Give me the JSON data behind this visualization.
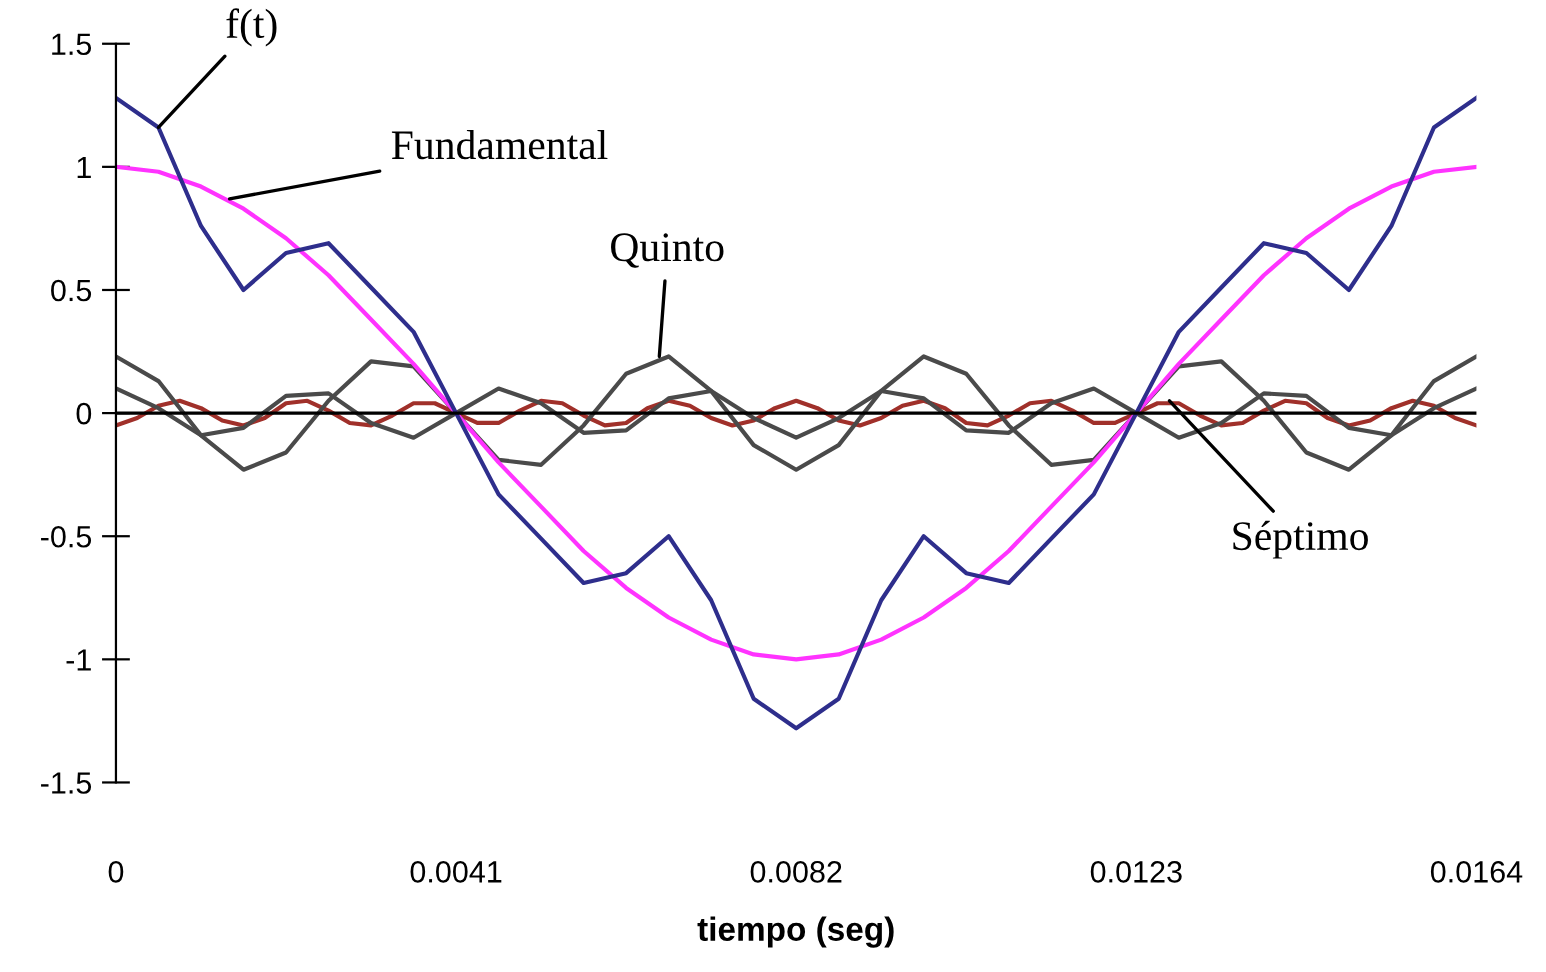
{
  "chart_data": {
    "type": "line",
    "xlabel": "tiempo (seg)",
    "x": [
      0,
      0.0005125,
      0.001025,
      0.0015375,
      0.00205,
      0.0025625,
      0.003075,
      0.0035875,
      0.0041,
      0.0046125,
      0.005125,
      0.0056375,
      0.00615,
      0.0066625,
      0.007175,
      0.0076875,
      0.0082,
      0.0087125,
      0.009225,
      0.0097375,
      0.01025,
      0.0107625,
      0.011275,
      0.0117875,
      0.0123,
      0.0128125,
      0.013325,
      0.0138375,
      0.01435,
      0.0148625,
      0.015375,
      0.0158875,
      0.0164
    ],
    "series": [
      {
        "color": "#a0302a",
        "x": [
          0,
          0.00025625,
          0.0005125,
          0.00076875,
          0.001025,
          0.00128125,
          0.0015375,
          0.00179375,
          0.00205,
          0.00230625,
          0.0025625,
          0.00281875,
          0.003075,
          0.00333125,
          0.0035875,
          0.00384375,
          0.0041,
          0.00435625,
          0.0046125,
          0.00486875,
          0.005125,
          0.00538125,
          0.0056375,
          0.00589375,
          0.00615,
          0.00640625,
          0.0066625,
          0.00691875,
          0.007175,
          0.00743125,
          0.0076875,
          0.00794375,
          0.0082,
          0.00845625,
          0.0087125,
          0.00896875,
          0.009225,
          0.00948125,
          0.0097375,
          0.00999375,
          0.01025,
          0.01050625,
          0.0107625,
          0.01101875,
          0.011275,
          0.01153125,
          0.0117875,
          0.01204375,
          0.0123,
          0.01255625,
          0.0128125,
          0.01306875,
          0.013325,
          0.01358125,
          0.0138375,
          0.01409375,
          0.01435,
          0.01460625,
          0.0148625,
          0.01511875,
          0.015375,
          0.01563125,
          0.0158875,
          0.01614375,
          0.0164
        ],
        "values": [
          -0.05,
          -0.02,
          0.03,
          0.05,
          0.02,
          -0.03,
          -0.05,
          -0.02,
          0.04,
          0.05,
          0.01,
          -0.04,
          -0.05,
          -0.01,
          0.04,
          0.04,
          0,
          -0.04,
          -0.04,
          0.01,
          0.05,
          0.04,
          -0.01,
          -0.05,
          -0.04,
          0.02,
          0.05,
          0.03,
          -0.02,
          -0.05,
          -0.03,
          0.02,
          0.05,
          0.02,
          -0.03,
          -0.05,
          -0.02,
          0.03,
          0.05,
          0.02,
          -0.04,
          -0.05,
          -0.01,
          0.04,
          0.05,
          0.01,
          -0.04,
          -0.04,
          0,
          0.04,
          0.04,
          -0.01,
          -0.05,
          -0.04,
          0.01,
          0.05,
          0.04,
          -0.02,
          -0.05,
          -0.03,
          0.02,
          0.05,
          0.03,
          -0.02,
          -0.05
        ]
      },
      {
        "color": "#4a4a4a",
        "values": [
          0.1,
          0.02,
          -0.09,
          -0.06,
          0.07,
          0.08,
          -0.04,
          -0.1,
          0,
          0.1,
          0.04,
          -0.08,
          -0.07,
          0.06,
          0.09,
          -0.02,
          -0.1,
          -0.02,
          0.09,
          0.06,
          -0.07,
          -0.08,
          0.04,
          0.1,
          0,
          -0.1,
          -0.04,
          0.08,
          0.07,
          -0.06,
          -0.09,
          0.02,
          0.1
        ]
      },
      {
        "color": "#4a4a4a",
        "values": [
          0.23,
          0.13,
          -0.09,
          -0.23,
          -0.16,
          0.05,
          0.21,
          0.19,
          0,
          -0.19,
          -0.21,
          -0.05,
          0.16,
          0.23,
          0.09,
          -0.13,
          -0.23,
          -0.13,
          0.09,
          0.23,
          0.16,
          -0.05,
          -0.21,
          -0.19,
          0,
          0.19,
          0.21,
          0.05,
          -0.16,
          -0.23,
          -0.09,
          0.13,
          0.23
        ]
      },
      {
        "color": "#ff33ff",
        "values": [
          1,
          0.98,
          0.92,
          0.83,
          0.71,
          0.56,
          0.38,
          0.2,
          0,
          -0.2,
          -0.38,
          -0.56,
          -0.71,
          -0.83,
          -0.92,
          -0.98,
          -1,
          -0.98,
          -0.92,
          -0.83,
          -0.71,
          -0.56,
          -0.38,
          -0.2,
          0,
          0.2,
          0.38,
          0.56,
          0.71,
          0.83,
          0.92,
          0.98,
          1
        ]
      },
      {
        "color": "#2e2e8c",
        "values": [
          1.28,
          1.16,
          0.76,
          0.5,
          0.65,
          0.69,
          0.51,
          0.33,
          0,
          -0.33,
          -0.51,
          -0.69,
          -0.65,
          -0.5,
          -0.76,
          -1.16,
          -1.28,
          -1.16,
          -0.76,
          -0.5,
          -0.65,
          -0.69,
          -0.51,
          -0.33,
          0,
          0.33,
          0.51,
          0.69,
          0.65,
          0.5,
          0.76,
          1.16,
          1.28
        ]
      }
    ],
    "annotations": [
      {
        "text": "f(t)",
        "x": 0.0005125,
        "y": 1.16
      },
      {
        "text": "Fundamental",
        "x": 0.00137,
        "y": 0.87
      },
      {
        "text": "Quinto",
        "x": 0.00655,
        "y": 0.23
      },
      {
        "text": "Séptimo",
        "x": 0.0127,
        "y": 0.05
      }
    ],
    "xlim": [
      0,
      0.0164
    ],
    "xticks": [
      0,
      0.0041,
      0.0082,
      0.0123,
      0.0164
    ],
    "ylim": [
      -1.5,
      1.5
    ],
    "yticks": [
      -1.5,
      -1,
      -0.5,
      0,
      0.5,
      1,
      1.5
    ],
    "ref_lines": [
      {
        "axis": "y",
        "value": 0,
        "color": "#000000"
      }
    ],
    "legend": false,
    "grid": false
  }
}
